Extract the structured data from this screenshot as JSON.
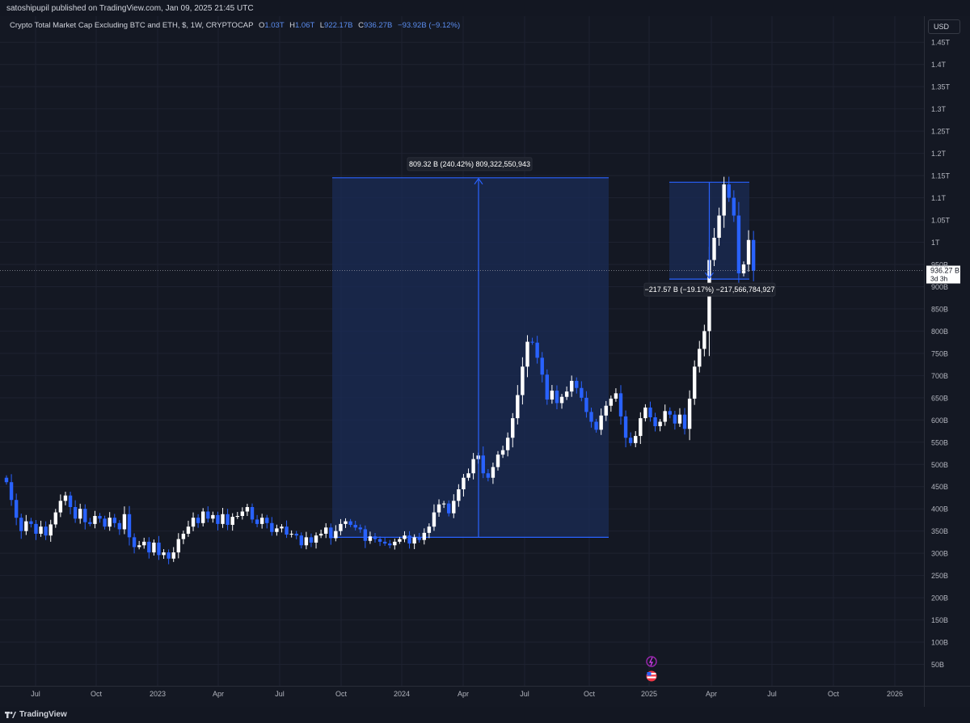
{
  "header": {
    "published_by": "satoshipupil published on TradingView.com, Jan 09, 2025 21:45 UTC"
  },
  "legend": {
    "title": "Crypto Total Market Cap Excluding BTC and ETH, $, 1W, CRYPTOCAP",
    "o_label": "O",
    "o_value": "1.03T",
    "h_label": "H",
    "h_value": "1.06T",
    "l_label": "L",
    "l_value": "922.17B",
    "c_label": "C",
    "c_value": "936.27B",
    "change": "−93.92B (−9.12%)"
  },
  "currency_button": "USD",
  "footer": {
    "brand": "TradingView"
  },
  "colors": {
    "background": "#141823",
    "up_candle": "#ffffff",
    "down_candle": "#2962ff",
    "measure_fill": "#1a2b55",
    "measure_line": "#2962ff",
    "price_tag_bg": "#ffffff"
  },
  "chart_data": {
    "type": "candlestick",
    "x_tick_labels": [
      "Jul",
      "Oct",
      "2023",
      "Apr",
      "Jul",
      "Oct",
      "2024",
      "Apr",
      "Jul",
      "Oct",
      "2025",
      "Apr",
      "Jul",
      "Oct",
      "2026"
    ],
    "y_tick_labels": [
      "1.45T",
      "1.4T",
      "1.35T",
      "1.3T",
      "1.25T",
      "1.2T",
      "1.15T",
      "1.1T",
      "1.05T",
      "1T",
      "950B",
      "900B",
      "850B",
      "800B",
      "750B",
      "700B",
      "650B",
      "600B",
      "550B",
      "500B",
      "450B",
      "400B",
      "350B",
      "300B",
      "250B",
      "200B",
      "150B",
      "100B",
      "50B"
    ],
    "y_unit": "B",
    "ylim": [
      0,
      1500
    ],
    "last_price_label": "936.27 B",
    "last_price": 936.27,
    "countdown_label": "3d 3h",
    "measurements": [
      {
        "label": "809.32 B (240.42%) 809,322,550,943",
        "from": 336,
        "to": 1145,
        "start": "2023-09",
        "end": "2024-11"
      },
      {
        "label": "−217.57 B (−19.17%) −217,566,784,927",
        "from": 1135,
        "to": 917,
        "start": "2025-01",
        "end": "2025-06"
      }
    ],
    "closes": [
      460,
      420,
      380,
      350,
      372,
      366,
      344,
      360,
      340,
      365,
      392,
      418,
      430,
      404,
      378,
      400,
      370,
      366,
      384,
      378,
      360,
      380,
      368,
      354,
      388,
      336,
      314,
      318,
      326,
      302,
      324,
      296,
      302,
      288,
      302,
      332,
      344,
      360,
      380,
      368,
      394,
      378,
      386,
      366,
      388,
      364,
      382,
      384,
      394,
      404,
      376,
      366,
      380,
      368,
      348,
      356,
      360,
      342,
      344,
      340,
      318,
      336,
      324,
      340,
      344,
      358,
      334,
      350,
      366,
      372,
      364,
      358,
      354,
      328,
      338,
      332,
      326,
      322,
      318,
      326,
      332,
      340,
      322,
      336,
      330,
      346,
      360,
      392,
      410,
      412,
      390,
      418,
      444,
      470,
      480,
      512,
      520,
      480,
      470,
      494,
      522,
      532,
      560,
      604,
      656,
      720,
      776,
      774,
      740,
      702,
      646,
      666,
      638,
      652,
      664,
      688,
      672,
      650,
      618,
      596,
      578,
      610,
      632,
      648,
      660,
      608,
      560,
      548,
      564,
      604,
      628,
      606,
      586,
      596,
      620,
      612,
      592,
      612,
      580,
      648,
      720,
      760,
      800,
      960,
      1010,
      1060,
      1130,
      1100,
      1060,
      930,
      950,
      1005,
      936
    ]
  }
}
